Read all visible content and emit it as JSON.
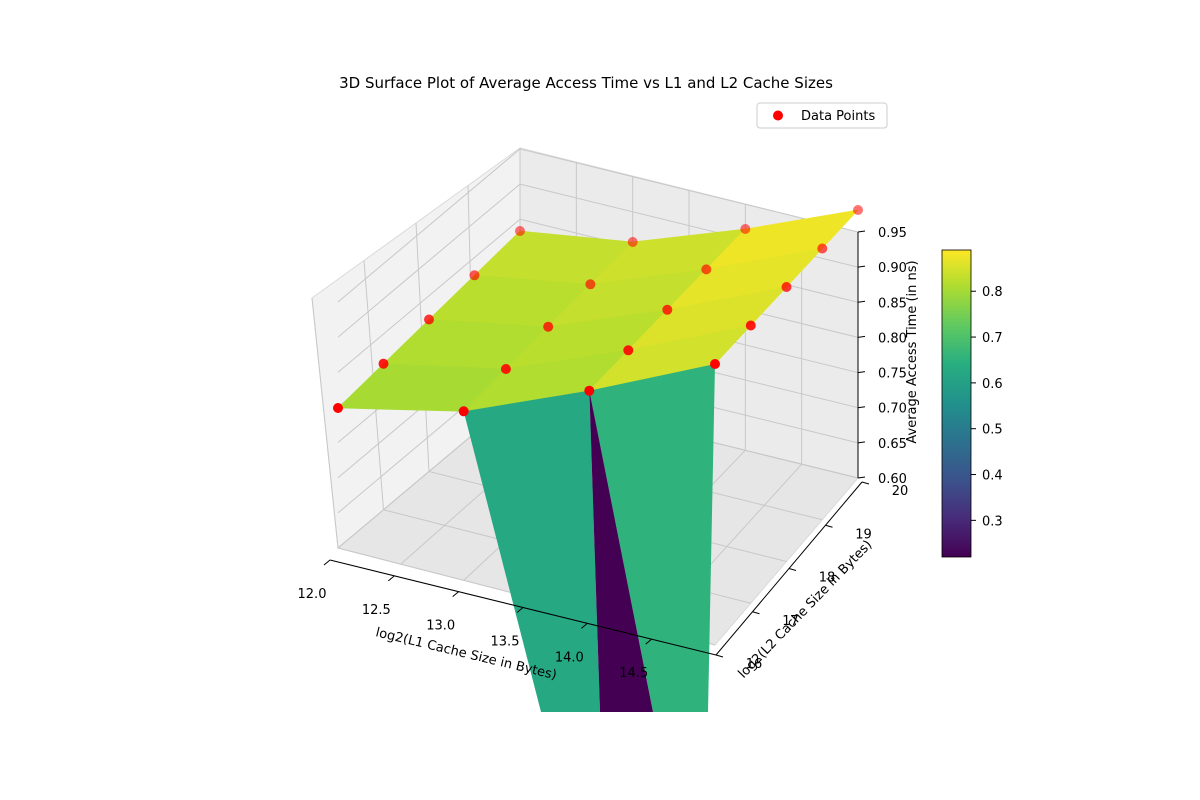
{
  "chart_data": {
    "type": "surface3d",
    "title": "3D Surface Plot of Average Access Time vs L1 and L2 Cache Sizes",
    "xlabel": "log2(L1 Cache Size in Bytes)",
    "ylabel": "log2(L2 Cache Size in Bytes)",
    "zlabel": "Average Access Time (in ns)",
    "x_ticks": [
      "12.0",
      "12.5",
      "13.0",
      "13.5",
      "14.0",
      "14.5"
    ],
    "y_ticks": [
      "16",
      "17",
      "18",
      "19",
      "20"
    ],
    "z_ticks": [
      "0.60",
      "0.65",
      "0.70",
      "0.75",
      "0.80",
      "0.85",
      "0.90",
      "0.95"
    ],
    "zlim": [
      0.6,
      0.95
    ],
    "colorbar": {
      "colormap": "viridis",
      "range": [
        0.22,
        0.89
      ],
      "ticks": [
        "0.3",
        "0.4",
        "0.5",
        "0.6",
        "0.7",
        "0.8"
      ]
    },
    "legend": {
      "placement": "upper-right",
      "label": "Data Points",
      "marker_color": "#ff0000"
    },
    "series": [
      {
        "name": "Data Points",
        "type": "scatter",
        "x": [
          12,
          12,
          12,
          12,
          12,
          13,
          13,
          13,
          13,
          13,
          14,
          14,
          14,
          14,
          14,
          15,
          15,
          15,
          15,
          15
        ],
        "y": [
          16,
          17,
          18,
          19,
          20,
          16,
          17,
          18,
          19,
          20,
          16,
          17,
          18,
          19,
          20,
          16,
          17,
          18,
          19,
          20
        ],
        "z": [
          0.8,
          0.81,
          0.82,
          0.83,
          0.84,
          0.79,
          0.8,
          0.81,
          0.82,
          0.83,
          0.82,
          0.83,
          0.84,
          0.85,
          0.86,
          0.86,
          0.87,
          0.88,
          0.89,
          0.9
        ]
      }
    ]
  }
}
